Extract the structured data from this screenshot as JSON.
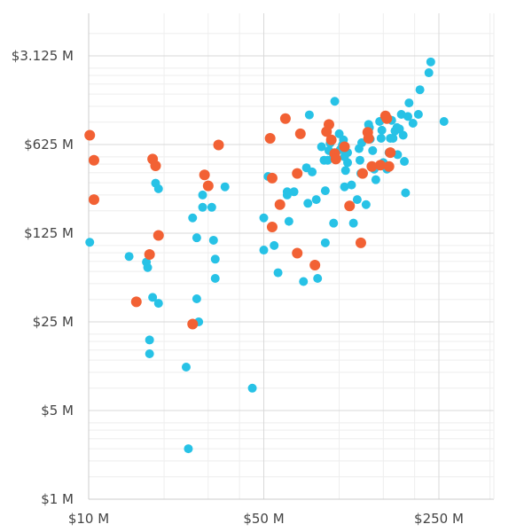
{
  "chart_data": {
    "type": "scatter",
    "title": "",
    "xlabel": "",
    "ylabel": "",
    "x_scale": "log",
    "y_scale": "log",
    "xlim": [
      10,
      500
    ],
    "ylim": [
      1,
      5000
    ],
    "x_ticks": [
      {
        "value": 10,
        "label": "$10  M"
      },
      {
        "value": 50,
        "label": "$50  M"
      },
      {
        "value": 250,
        "label": "$250  M"
      }
    ],
    "y_ticks": [
      {
        "value": 1,
        "label": "$1  M"
      },
      {
        "value": 5,
        "label": "$5  M"
      },
      {
        "value": 25,
        "label": "$25  M"
      },
      {
        "value": 125,
        "label": "$125  M"
      },
      {
        "value": 625,
        "label": "$625  M"
      },
      {
        "value": 3125,
        "label": "$3.125  M"
      }
    ],
    "grid": true,
    "legend": "none",
    "colors": {
      "blue": "#27c2e6",
      "orange": "#f26134"
    },
    "series": [
      {
        "color": "#27c2e6",
        "points": [
          [
            10.1,
            106
          ],
          [
            14.5,
            82
          ],
          [
            17,
            74
          ],
          [
            17.2,
            67
          ],
          [
            18,
            39
          ],
          [
            19,
            35
          ],
          [
            17.5,
            18
          ],
          [
            17.5,
            14
          ],
          [
            18.5,
            310
          ],
          [
            19,
            280
          ],
          [
            24.5,
            11
          ],
          [
            25,
            2.5
          ],
          [
            26,
            165
          ],
          [
            27,
            38
          ],
          [
            27,
            115
          ],
          [
            27.5,
            25
          ],
          [
            28.5,
            250
          ],
          [
            28.5,
            200
          ],
          [
            31,
            200
          ],
          [
            31.5,
            110
          ],
          [
            32,
            78
          ],
          [
            32,
            55
          ],
          [
            35,
            290
          ],
          [
            45,
            7.5
          ],
          [
            50,
            165
          ],
          [
            50,
            92
          ],
          [
            52,
            350
          ],
          [
            55,
            100
          ],
          [
            57,
            61
          ],
          [
            62,
            250
          ],
          [
            62,
            265
          ],
          [
            63,
            155
          ],
          [
            66,
            265
          ],
          [
            72,
            52
          ],
          [
            74,
            410
          ],
          [
            75,
            215
          ],
          [
            76,
            1070
          ],
          [
            78,
            380
          ],
          [
            81,
            230
          ],
          [
            82,
            55
          ],
          [
            85,
            600
          ],
          [
            87,
            470
          ],
          [
            88,
            270
          ],
          [
            88,
            105
          ],
          [
            90,
            470
          ],
          [
            91,
            560
          ],
          [
            92,
            640
          ],
          [
            95,
            510
          ],
          [
            95,
            150
          ],
          [
            96,
            1370
          ],
          [
            100,
            760
          ],
          [
            101,
            570
          ],
          [
            103,
            620
          ],
          [
            104,
            680
          ],
          [
            105,
            500
          ],
          [
            105,
            290
          ],
          [
            106,
            390
          ],
          [
            108,
            540
          ],
          [
            108,
            450
          ],
          [
            112,
            300
          ],
          [
            114,
            150
          ],
          [
            118,
            230
          ],
          [
            120,
            580
          ],
          [
            121,
            470
          ],
          [
            122,
            370
          ],
          [
            123,
            645
          ],
          [
            128,
            210
          ],
          [
            131,
            900
          ],
          [
            132,
            850
          ],
          [
            133,
            690
          ],
          [
            136,
            560
          ],
          [
            138,
            400
          ],
          [
            140,
            330
          ],
          [
            145,
            950
          ],
          [
            147,
            700
          ],
          [
            148,
            810
          ],
          [
            150,
            450
          ],
          [
            155,
            400
          ],
          [
            158,
            540
          ],
          [
            160,
            700
          ],
          [
            162,
            970
          ],
          [
            164,
            700
          ],
          [
            167,
            800
          ],
          [
            170,
            850
          ],
          [
            171,
            520
          ],
          [
            174,
            830
          ],
          [
            177,
            1080
          ],
          [
            180,
            740
          ],
          [
            182,
            460
          ],
          [
            184,
            260
          ],
          [
            188,
            1040
          ],
          [
            190,
            1330
          ],
          [
            197,
            920
          ],
          [
            207,
            1080
          ],
          [
            210,
            1690
          ],
          [
            228,
            2300
          ],
          [
            232,
            2800
          ],
          [
            262,
            950
          ]
        ]
      },
      {
        "color": "#f26134",
        "points": [
          [
            10.1,
            740
          ],
          [
            10.5,
            470
          ],
          [
            10.5,
            230
          ],
          [
            15.5,
            36
          ],
          [
            17.5,
            85
          ],
          [
            18,
            480
          ],
          [
            18.5,
            425
          ],
          [
            19,
            120
          ],
          [
            26,
            24
          ],
          [
            29,
            360
          ],
          [
            30,
            295
          ],
          [
            33,
            620
          ],
          [
            53,
            700
          ],
          [
            54,
            340
          ],
          [
            54,
            140
          ],
          [
            58,
            210
          ],
          [
            61,
            1000
          ],
          [
            68,
            370
          ],
          [
            68,
            87
          ],
          [
            70,
            760
          ],
          [
            80,
            70
          ],
          [
            89,
            790
          ],
          [
            91,
            900
          ],
          [
            93,
            680
          ],
          [
            96,
            530
          ],
          [
            97,
            480
          ],
          [
            105,
            600
          ],
          [
            110,
            205
          ],
          [
            122,
            105
          ],
          [
            124,
            370
          ],
          [
            130,
            780
          ],
          [
            131,
            700
          ],
          [
            135,
            420
          ],
          [
            146,
            430
          ],
          [
            153,
            1050
          ],
          [
            155,
            1000
          ],
          [
            158,
            420
          ],
          [
            160,
            540
          ]
        ]
      }
    ]
  }
}
